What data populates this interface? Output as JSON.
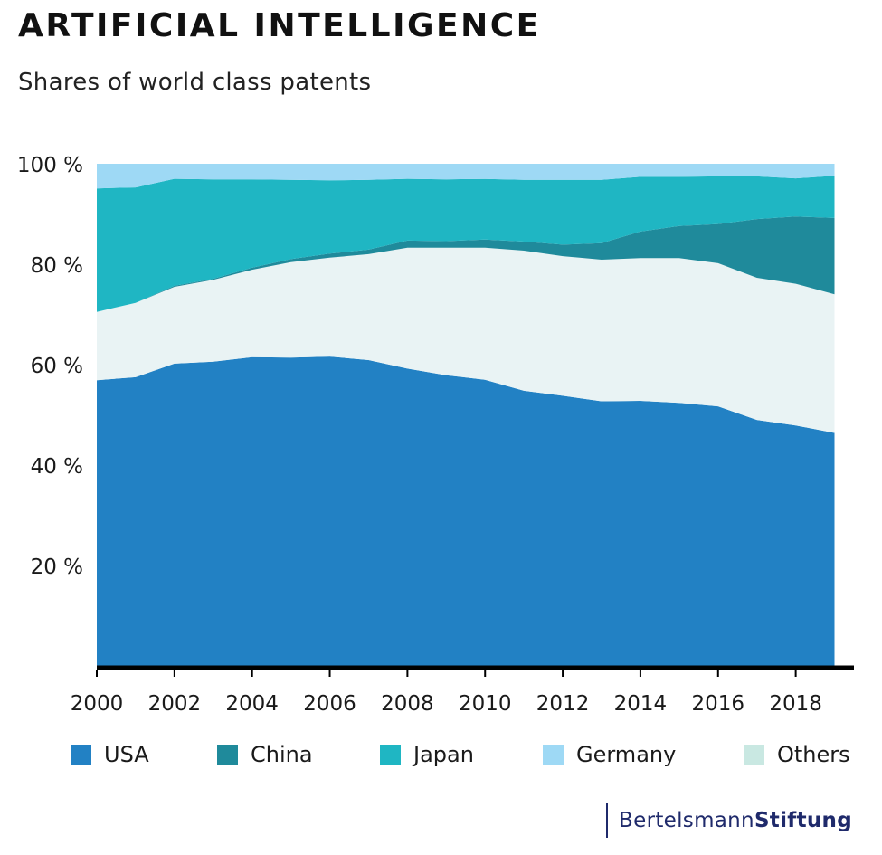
{
  "title": "ARTIFICIAL INTELLIGENCE",
  "subtitle": "Shares of world class patents",
  "brand": {
    "part1": "Bertelsmann",
    "part2": "Stiftung"
  },
  "colors": {
    "USA": "#2281c4",
    "Others": "#e9f3f4",
    "China": "#1f8a9b",
    "Japan": "#1fb6c3",
    "Germany": "#9ed9f5",
    "legend_others": "#c9e8e2",
    "axis": "#000000"
  },
  "legend": [
    {
      "name": "USA",
      "color": "#2281c4"
    },
    {
      "name": "China",
      "color": "#1f8a9b"
    },
    {
      "name": "Japan",
      "color": "#1fb6c3"
    },
    {
      "name": "Germany",
      "color": "#9ed9f5"
    },
    {
      "name": "Others",
      "color": "#c9e8e2"
    }
  ],
  "chart_data": {
    "type": "area",
    "stacked": true,
    "title": "ARTIFICIAL INTELLIGENCE",
    "subtitle": "Shares of world class patents",
    "xlabel": "",
    "ylabel": "",
    "x": [
      2000,
      2001,
      2002,
      2003,
      2004,
      2005,
      2006,
      2007,
      2008,
      2009,
      2010,
      2011,
      2012,
      2013,
      2014,
      2015,
      2016,
      2017,
      2018,
      2019
    ],
    "xlim": [
      2000,
      2019.5
    ],
    "ylim": [
      0,
      100
    ],
    "x_ticks": [
      "2000",
      "2002",
      "2004",
      "2006",
      "2008",
      "2010",
      "2012",
      "2014",
      "2016",
      "2018"
    ],
    "y_ticks": [
      "20 %",
      "40 %",
      "60 %",
      "80 %",
      "100 %"
    ],
    "stack_order_bottom_to_top": [
      "USA",
      "Others",
      "China",
      "Japan",
      "Germany"
    ],
    "series": [
      {
        "name": "USA",
        "values": [
          56.9,
          57.5,
          60.2,
          60.6,
          61.5,
          61.4,
          61.6,
          60.9,
          59.2,
          57.9,
          57.0,
          54.8,
          53.8,
          52.7,
          52.8,
          52.4,
          51.7,
          49.0,
          47.9,
          46.4
        ]
      },
      {
        "name": "Others",
        "values": [
          13.6,
          14.8,
          15.3,
          16.3,
          17.4,
          19.0,
          19.7,
          21.1,
          24.1,
          25.4,
          26.3,
          27.9,
          27.8,
          28.2,
          28.4,
          28.8,
          28.5,
          28.3,
          28.2,
          27.6
        ]
      },
      {
        "name": "China",
        "values": [
          0.0,
          0.0,
          0.2,
          0.2,
          0.4,
          0.6,
          0.8,
          0.9,
          1.4,
          1.3,
          1.6,
          1.8,
          2.3,
          3.3,
          5.3,
          6.4,
          7.8,
          11.7,
          13.4,
          15.2
        ]
      },
      {
        "name": "Japan",
        "values": [
          24.6,
          23.0,
          21.3,
          19.8,
          17.6,
          15.8,
          14.6,
          13.9,
          12.3,
          12.3,
          12.1,
          12.3,
          12.9,
          12.6,
          10.9,
          9.8,
          9.5,
          8.5,
          7.6,
          8.4
        ]
      },
      {
        "name": "Germany",
        "values": [
          4.9,
          4.7,
          3.0,
          3.1,
          3.1,
          3.2,
          3.3,
          3.2,
          3.0,
          3.1,
          3.0,
          3.2,
          3.2,
          3.2,
          2.6,
          2.6,
          2.5,
          2.5,
          2.9,
          2.4
        ]
      }
    ]
  }
}
